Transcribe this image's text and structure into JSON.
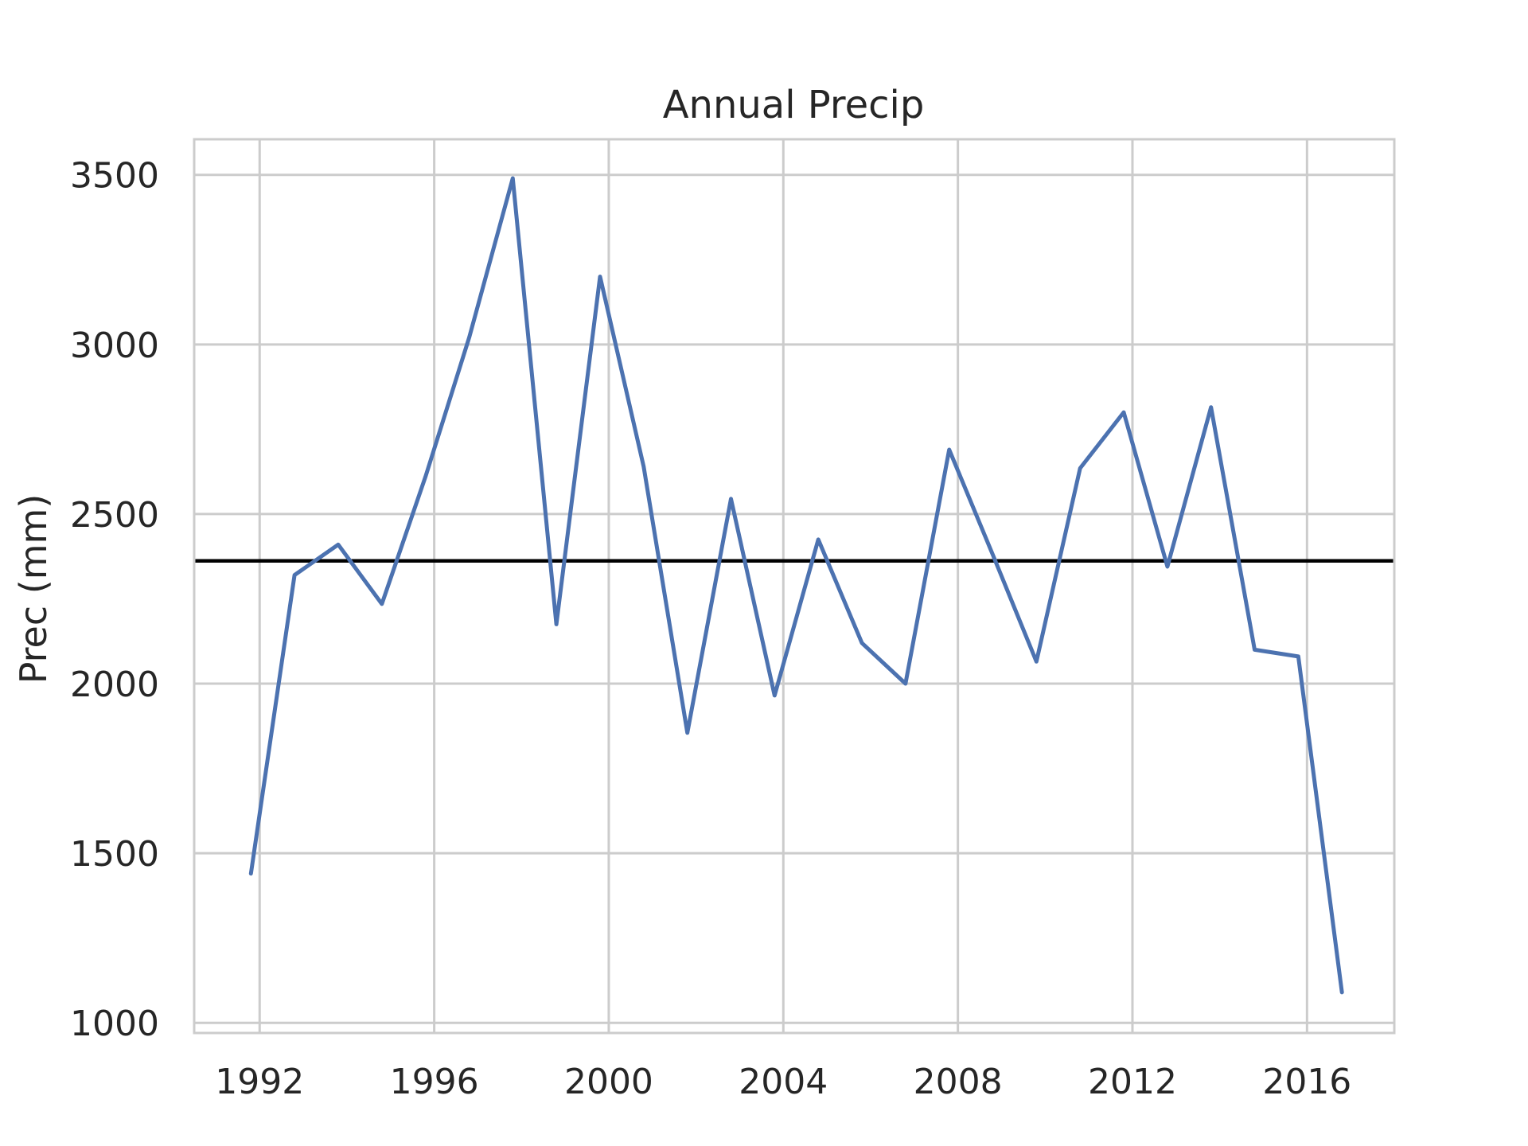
{
  "chart_data": {
    "type": "line",
    "title": "Annual Precip",
    "xlabel": "",
    "ylabel": "Prec (mm)",
    "x": [
      1991.8,
      1992.8,
      1993.8,
      1994.8,
      1995.8,
      1996.8,
      1997.8,
      1998.8,
      1999.8,
      2000.8,
      2001.8,
      2002.8,
      2003.8,
      2004.8,
      2005.8,
      2006.8,
      2007.8,
      2008.8,
      2009.8,
      2010.8,
      2011.8,
      2012.8,
      2013.8,
      2014.8,
      2015.8,
      2016.8
    ],
    "series": [
      {
        "name": "",
        "color": "#4c72b0",
        "values": [
          1440,
          2320,
          2410,
          2235,
          2610,
          3020,
          3490,
          2175,
          3200,
          2640,
          1855,
          2545,
          1965,
          2425,
          2120,
          2000,
          2690,
          2380,
          2065,
          2635,
          2800,
          2345,
          2815,
          2100,
          2080,
          1090
        ]
      }
    ],
    "reference_line": {
      "value": 2362,
      "color": "#000000"
    },
    "xticks": [
      1992,
      1996,
      2000,
      2004,
      2008,
      2012,
      2016
    ],
    "yticks": [
      1000,
      1500,
      2000,
      2500,
      3000,
      3500
    ],
    "xlim": [
      1990.5,
      2018.0
    ],
    "ylim": [
      970,
      3605
    ],
    "grid": true
  }
}
